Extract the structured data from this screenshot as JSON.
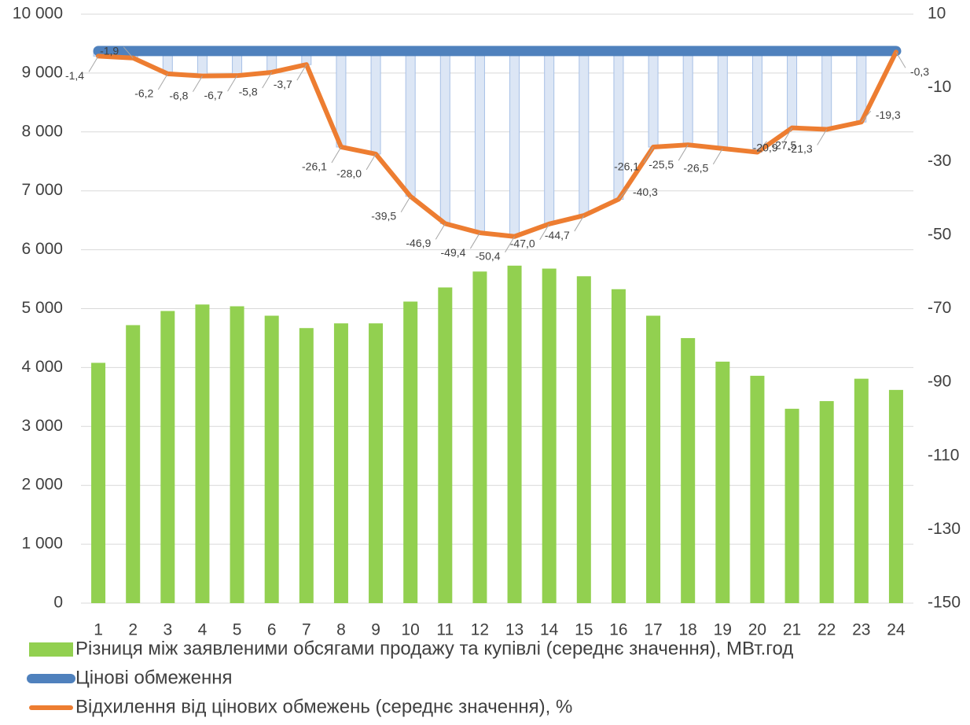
{
  "chart_data": {
    "type": "bar",
    "categories": [
      1,
      2,
      3,
      4,
      5,
      6,
      7,
      8,
      9,
      10,
      11,
      12,
      13,
      14,
      15,
      16,
      17,
      18,
      19,
      20,
      21,
      22,
      23,
      24
    ],
    "ylim": [
      0,
      10000
    ],
    "yticks": [
      {
        "value": 0,
        "label": "0"
      },
      {
        "value": 1000,
        "label": "1 000"
      },
      {
        "value": 2000,
        "label": "2 000"
      },
      {
        "value": 3000,
        "label": "3 000"
      },
      {
        "value": 4000,
        "label": "4 000"
      },
      {
        "value": 5000,
        "label": "5 000"
      },
      {
        "value": 6000,
        "label": "6 000"
      },
      {
        "value": 7000,
        "label": "7 000"
      },
      {
        "value": 8000,
        "label": "8 000"
      },
      {
        "value": 9000,
        "label": "9 000"
      },
      {
        "value": 10000,
        "label": "10 000"
      }
    ],
    "y2lim": [
      -150,
      10
    ],
    "y2ticks": [
      -150,
      -130,
      -110,
      -90,
      -70,
      -50,
      -30,
      -10,
      10
    ],
    "grid": true,
    "legend": "bottom",
    "series": [
      {
        "name": "Різниця між заявленими обсягами продажу та купівлі (середнє значення), МВт.год",
        "type": "bar",
        "color": "#92d050",
        "values": [
          4080,
          4720,
          4960,
          5070,
          5040,
          4880,
          4670,
          4750,
          4750,
          5120,
          5360,
          5630,
          5730,
          5680,
          5550,
          5330,
          4880,
          4500,
          4100,
          3860,
          3300,
          3430,
          3810,
          3620
        ]
      },
      {
        "name": "Цінові обмеження",
        "type": "line",
        "axis": "y2",
        "color": "#4f81bd",
        "values": [
          0,
          0,
          0,
          0,
          0,
          0,
          0,
          0,
          0,
          0,
          0,
          0,
          0,
          0,
          0,
          0,
          0,
          0,
          0,
          0,
          0,
          0,
          0,
          0
        ]
      },
      {
        "name": "Відхилення від цінових обмежень (середнє значення), %",
        "type": "line",
        "axis": "y2",
        "color": "#ed7d31",
        "values": [
          -1.4,
          -1.9,
          -6.2,
          -6.8,
          -6.7,
          -5.8,
          -3.7,
          -26.1,
          -28.0,
          -39.5,
          -46.9,
          -49.4,
          -50.4,
          -47.0,
          -44.7,
          -40.3,
          -26.1,
          -25.5,
          -26.5,
          -27.5,
          -20.9,
          -21.3,
          -19.3,
          -0.3
        ],
        "value_labels": [
          "-1,4",
          "-1,9",
          "-6,2",
          "-6,8",
          "-6,7",
          "-5,8",
          "-3,7",
          "-26,1",
          "-28,0",
          "-39,5",
          "-46,9",
          "-49,4",
          "-50,4",
          "-47,0",
          "-44,7",
          "-40,3",
          "-26,1",
          "-25,5",
          "-26,5",
          "-27,5",
          "-20,9",
          "-21,3",
          "-19,3",
          "-0,3"
        ]
      }
    ]
  }
}
